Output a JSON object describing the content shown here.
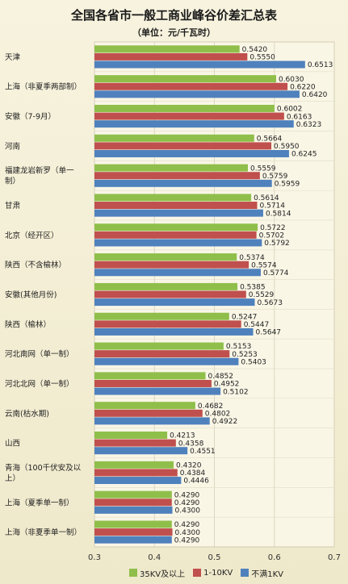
{
  "chart_data": {
    "type": "bar",
    "orientation": "horizontal",
    "title": "全国各省市一般工商业峰谷价差汇总表",
    "subtitle": "（单位：元/千瓦时）",
    "xlim": [
      0.3,
      0.7
    ],
    "xticks": [
      "0.3",
      "0.4",
      "0.5",
      "0.6",
      "0.7"
    ],
    "grid": true,
    "legend_position": "bottom",
    "categories": [
      [
        "天津"
      ],
      [
        "上海（非夏季两部制）"
      ],
      [
        "安徽（7-9月）"
      ],
      [
        "河南"
      ],
      [
        "福建龙岩新罗（单一",
        "制）"
      ],
      [
        "甘肃"
      ],
      [
        "北京（经开区）"
      ],
      [
        "陕西（不含榆林）"
      ],
      [
        "安徽(其他月份)"
      ],
      [
        "陕西（榆林）"
      ],
      [
        "河北南网（单一制）"
      ],
      [
        "河北北网（单一制）"
      ],
      [
        "云南(枯水期)"
      ],
      [
        "山西"
      ],
      [
        "青海（100千伏安及以",
        "上）"
      ],
      [
        "上海（夏季单一制）"
      ],
      [
        "上海（非夏季单一制）"
      ]
    ],
    "series": [
      {
        "name": "35KV及以上",
        "color": "#8fbf4a",
        "values": [
          0.542,
          0.603,
          0.6002,
          0.5664,
          0.5559,
          0.5614,
          0.5722,
          0.5374,
          0.5385,
          0.5247,
          0.5153,
          0.4852,
          0.4682,
          0.4213,
          0.432,
          0.429,
          0.429
        ],
        "labels": [
          "0.5420",
          "0.6030",
          "0.6002",
          "0.5664",
          "0.5559",
          "0.5614",
          "0.5722",
          "0.5374",
          "0.5385",
          "0.5247",
          "0.5153",
          "0.4852",
          "0.4682",
          "0.4213",
          "0.4320",
          "0.4290",
          "0.4290"
        ]
      },
      {
        "name": "1-10KV",
        "color": "#c0504d",
        "values": [
          0.555,
          0.622,
          0.6163,
          0.595,
          0.5759,
          0.5714,
          0.5702,
          0.5574,
          0.5529,
          0.5447,
          0.5253,
          0.4952,
          0.4802,
          0.4358,
          0.4384,
          0.429,
          0.43
        ],
        "labels": [
          "0.5550",
          "0.6220",
          "0.6163",
          "0.5950",
          "0.5759",
          "0.5714",
          "0.5702",
          "0.5574",
          "0.5529",
          "0.5447",
          "0.5253",
          "0.4952",
          "0.4802",
          "0.4358",
          "0.4384",
          "0.4290",
          "0.4300"
        ]
      },
      {
        "name": "不满1KV",
        "color": "#4f81bd",
        "values": [
          0.6513,
          0.642,
          0.6323,
          0.6245,
          0.5959,
          0.5814,
          0.5792,
          0.5774,
          0.5673,
          0.5647,
          0.5403,
          0.5102,
          0.4922,
          0.4551,
          0.4446,
          0.43,
          0.429
        ],
        "labels": [
          "0.6513",
          "0.6420",
          "0.6323",
          "0.6245",
          "0.5959",
          "0.5814",
          "0.5792",
          "0.5774",
          "0.5673",
          "0.5647",
          "0.5403",
          "0.5102",
          "0.4922",
          "0.4551",
          "0.4446",
          "0.4300",
          "0.4290"
        ]
      }
    ]
  }
}
